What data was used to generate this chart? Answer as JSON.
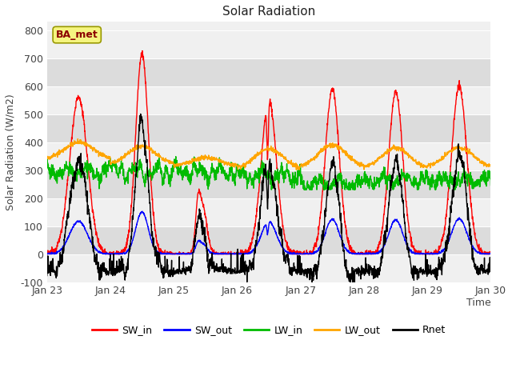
{
  "title": "Solar Radiation",
  "xlabel": "Time",
  "ylabel": "Solar Radiation (W/m2)",
  "ylim": [
    -100,
    830
  ],
  "yticks": [
    -100,
    0,
    100,
    200,
    300,
    400,
    500,
    600,
    700,
    800
  ],
  "xtick_labels": [
    "Jan 23",
    "Jan 24",
    "Jan 25",
    "Jan 26",
    "Jan 27",
    "Jan 28",
    "Jan 29",
    "Jan 30"
  ],
  "legend_labels": [
    "SW_in",
    "SW_out",
    "LW_in",
    "LW_out",
    "Rnet"
  ],
  "legend_colors": [
    "#ff0000",
    "#0000ff",
    "#00bb00",
    "#ffa500",
    "#000000"
  ],
  "line_colors": {
    "SW_in": "#ff0000",
    "SW_out": "#0000ff",
    "LW_in": "#00bb00",
    "LW_out": "#ffa500",
    "Rnet": "#000000"
  },
  "station_label": "BA_met",
  "station_label_color": "#8b0000",
  "station_box_facecolor": "#f5f580",
  "station_box_edgecolor": "#999900",
  "plot_bg_light": "#f0f0f0",
  "plot_bg_dark": "#dcdcdc",
  "band_colors": [
    "#f0f0f0",
    "#dcdcdc"
  ],
  "n_days": 7,
  "points_per_day": 288
}
